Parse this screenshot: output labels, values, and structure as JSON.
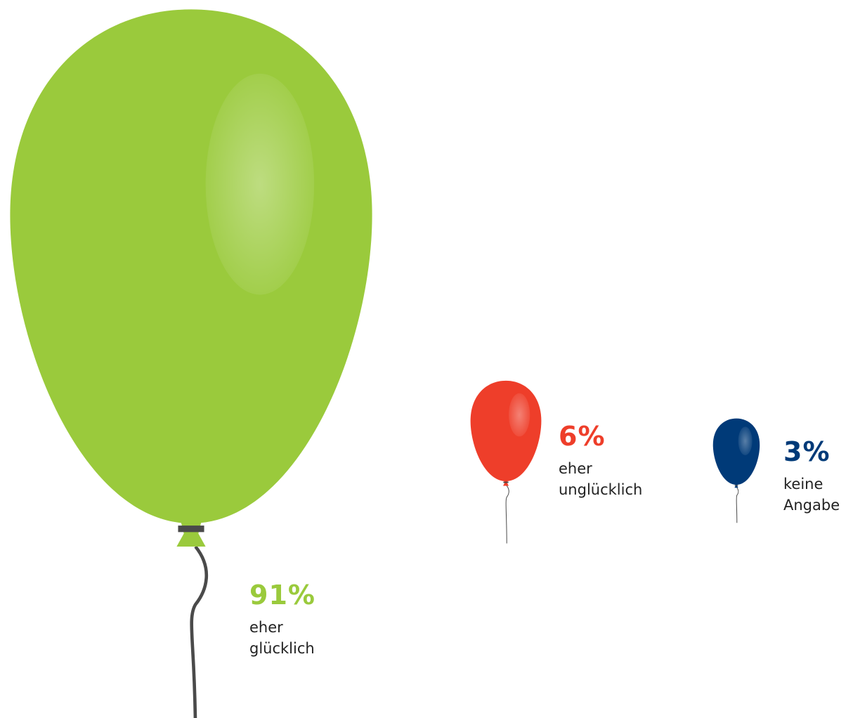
{
  "chart_data": {
    "type": "balloon",
    "categories": [
      "eher glücklich",
      "eher unglücklich",
      "keine Angabe"
    ],
    "values": [
      91,
      6,
      3
    ],
    "value_labels": [
      "91%",
      "6%",
      "3%"
    ],
    "colors": [
      "#9aca3c",
      "#ee3e2a",
      "#003a78"
    ]
  }
}
